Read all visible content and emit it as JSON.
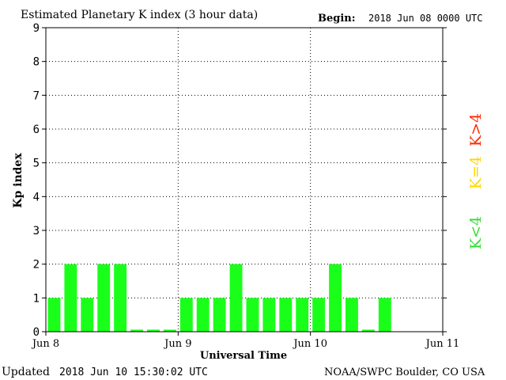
{
  "header": {
    "title": "Estimated Planetary K index (3 hour data)",
    "begin_label": "Begin:",
    "begin_value": "2018 Jun 08 0000 UTC"
  },
  "footer": {
    "updated_label": "Updated",
    "updated_value": "2018 Jun 10 15:30:02 UTC",
    "source": "NOAA/SWPC Boulder, CO USA"
  },
  "legend": {
    "above": "K>4",
    "equal": "K=4",
    "below": "K<4"
  },
  "colors": {
    "bar": "#1aff1a",
    "k_above": "#ff2a00",
    "k_equal": "#ffd700",
    "k_below": "#33dd33"
  },
  "chart_data": {
    "type": "bar",
    "title": "Estimated Planetary K index (3 hour data)",
    "xlabel": "Universal Time",
    "ylabel": "Kp index",
    "ylim": [
      0,
      9
    ],
    "yticks": [
      "0",
      "1",
      "2",
      "3",
      "4",
      "5",
      "6",
      "7",
      "8",
      "9"
    ],
    "xticks": [
      "Jun 8",
      "Jun 9",
      "Jun 10",
      "Jun 11"
    ],
    "grid": true,
    "values": [
      1,
      2,
      1,
      2,
      2,
      0,
      0,
      0,
      1,
      1,
      1,
      2,
      1,
      1,
      1,
      1,
      1,
      2,
      1,
      0,
      1
    ]
  }
}
